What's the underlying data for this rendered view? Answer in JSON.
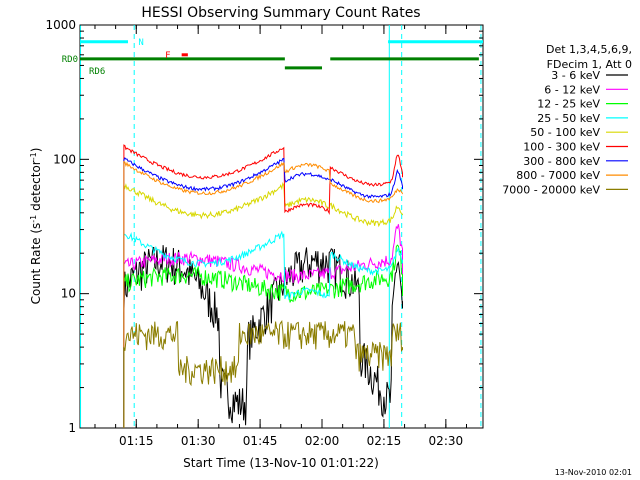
{
  "chart_data": {
    "type": "line",
    "title": "HESSI Observing Summary Count Rates",
    "xlabel": "Start Time (13-Nov-10 01:01:22)",
    "ylabel_main": "Count Rate (s",
    "ylabel_sup1": "-1",
    "ylabel_mid": " detector",
    "ylabel_sup2": "-1",
    "ylabel_end": ")",
    "y_scale": "log",
    "ylim": [
      1,
      1000
    ],
    "xlim_minutes": [
      61.37,
      159
    ],
    "y_ticks": [
      {
        "value": 1,
        "label": "1"
      },
      {
        "value": 10,
        "label": "10"
      },
      {
        "value": 100,
        "label": "100"
      },
      {
        "value": 1000,
        "label": "1000"
      }
    ],
    "x_ticks": [
      {
        "value": 75,
        "label": "01:15"
      },
      {
        "value": 90,
        "label": "01:30"
      },
      {
        "value": 105,
        "label": "01:45"
      },
      {
        "value": 120,
        "label": "02:00"
      },
      {
        "value": 135,
        "label": "02:15"
      },
      {
        "value": 150,
        "label": "02:30"
      }
    ],
    "legend_header": [
      "Det 1,3,4,5,6,9,",
      "FDecim 1, Att 0"
    ],
    "legend_position": "right",
    "series": [
      {
        "name": "3 - 6 keV",
        "color": "#000000",
        "shape": "low",
        "base": 11,
        "noise": 0.35,
        "spike": 4.0
      },
      {
        "name": "6 - 12 keV",
        "color": "#ff00ff",
        "shape": "flat",
        "base": 16,
        "noise": 0.12,
        "spike": 1.7
      },
      {
        "name": "12 - 25 keV",
        "color": "#00ff00",
        "shape": "flat",
        "base": 12,
        "noise": 0.16,
        "spike": 1.6
      },
      {
        "name": "25 - 50 keV",
        "color": "#00ffff",
        "shape": "cyan",
        "base": 21,
        "noise": 0.06,
        "spike": 1.3
      },
      {
        "name": "50 - 100 keV",
        "color": "#d8d800",
        "shape": "bowl",
        "base": 48,
        "noise": 0.05,
        "spike": 1.2
      },
      {
        "name": "100 - 300 keV",
        "color": "#ff0000",
        "shape": "bowl_dip",
        "base": 92,
        "noise": 0.03,
        "spike": 1.5
      },
      {
        "name": "300 - 800 keV",
        "color": "#0000ff",
        "shape": "bowl",
        "base": 75,
        "noise": 0.03,
        "spike": 1.4
      },
      {
        "name": "800 - 7000 keV",
        "color": "#ff8c00",
        "shape": "bowl_up",
        "base": 70,
        "noise": 0.03,
        "spike": 1.1
      },
      {
        "name": "7000 - 20000 keV",
        "color": "#8b7d00",
        "shape": "step",
        "base": 5,
        "noise": 0.25,
        "spike": 1.0
      }
    ],
    "flags": [
      {
        "name": "N",
        "color": "#00ffff",
        "y_value": 750,
        "segments": [
          [
            61.37,
            73
          ],
          [
            136,
            159
          ]
        ]
      },
      {
        "name": "F",
        "color": "#ff0000",
        "y_value": 600,
        "segments": [
          [
            86,
            87.5
          ]
        ]
      },
      {
        "name": "RD0",
        "color": "#008000",
        "y_value": 560,
        "segments": [
          [
            61.37,
            111
          ],
          [
            122,
            158
          ]
        ]
      },
      {
        "name": "RD6",
        "color": "#008000",
        "y_value": 480,
        "segments": [
          [
            111,
            120
          ]
        ]
      }
    ],
    "vlines": [
      {
        "value": 61.5,
        "color": "#00ffff",
        "style": "solid"
      },
      {
        "value": 74.5,
        "color": "#00ffff",
        "style": "dashed"
      },
      {
        "value": 136.3,
        "color": "#00ffff",
        "style": "solid"
      },
      {
        "value": 139.3,
        "color": "#00ffff",
        "style": "dashed"
      },
      {
        "value": 158.5,
        "color": "#00ffff",
        "style": "dashed"
      }
    ],
    "observing_window": [
      72,
      139.5
    ],
    "segment_breaks": [
      111,
      122
    ]
  },
  "timestamp": "13-Nov-2010 02:01"
}
